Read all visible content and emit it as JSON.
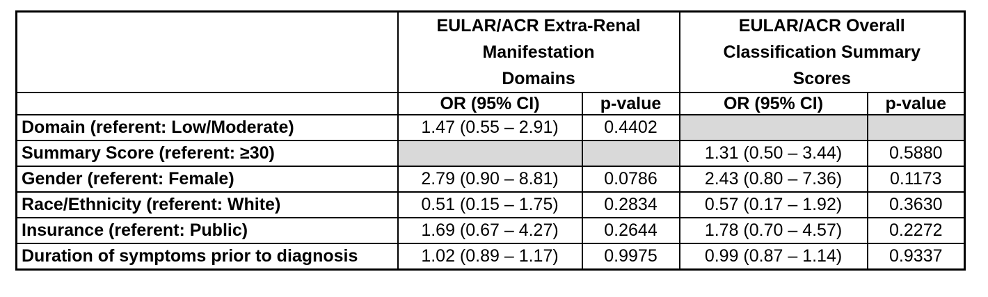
{
  "table": {
    "group_headers": [
      "EULAR/ACR Extra-Renal\nManifestation\nDomains",
      "EULAR/ACR Overall\nClassification Summary\nScores"
    ],
    "sub_headers": [
      "OR (95% CI)",
      "p-value",
      "OR (95% CI)",
      "p-value"
    ],
    "rows": [
      {
        "label": "Domain (referent: Low/Moderate)",
        "cells": [
          {
            "text": "1.47 (0.55 – 2.91)",
            "shaded": false
          },
          {
            "text": "0.4402",
            "shaded": false
          },
          {
            "text": "",
            "shaded": true
          },
          {
            "text": "",
            "shaded": true
          }
        ]
      },
      {
        "label": "Summary Score (referent: ≥30)",
        "cells": [
          {
            "text": "",
            "shaded": true
          },
          {
            "text": "",
            "shaded": true
          },
          {
            "text": "1.31 (0.50 – 3.44)",
            "shaded": false
          },
          {
            "text": "0.5880",
            "shaded": false
          }
        ]
      },
      {
        "label": "Gender (referent: Female)",
        "cells": [
          {
            "text": "2.79 (0.90 – 8.81)",
            "shaded": false
          },
          {
            "text": "0.0786",
            "shaded": false
          },
          {
            "text": "2.43 (0.80 – 7.36)",
            "shaded": false
          },
          {
            "text": "0.1173",
            "shaded": false
          }
        ]
      },
      {
        "label": "Race/Ethnicity (referent: White)",
        "cells": [
          {
            "text": "0.51 (0.15 – 1.75)",
            "shaded": false
          },
          {
            "text": "0.2834",
            "shaded": false
          },
          {
            "text": "0.57 (0.17 – 1.92)",
            "shaded": false
          },
          {
            "text": "0.3630",
            "shaded": false
          }
        ]
      },
      {
        "label": "Insurance (referent: Public)",
        "cells": [
          {
            "text": "1.69 (0.67 – 4.27)",
            "shaded": false
          },
          {
            "text": "0.2644",
            "shaded": false
          },
          {
            "text": "1.78 (0.70 – 4.57)",
            "shaded": false
          },
          {
            "text": "0.2272",
            "shaded": false
          }
        ]
      },
      {
        "label": "Duration of symptoms prior to diagnosis",
        "cells": [
          {
            "text": "1.02 (0.89 – 1.17)",
            "shaded": false
          },
          {
            "text": "0.9975",
            "shaded": false
          },
          {
            "text": "0.99 (0.87 – 1.14)",
            "shaded": false
          },
          {
            "text": "0.9337",
            "shaded": false
          }
        ]
      }
    ]
  },
  "colors": {
    "shaded_cell": "#d9d9d9",
    "border": "#000000",
    "background": "#ffffff"
  }
}
